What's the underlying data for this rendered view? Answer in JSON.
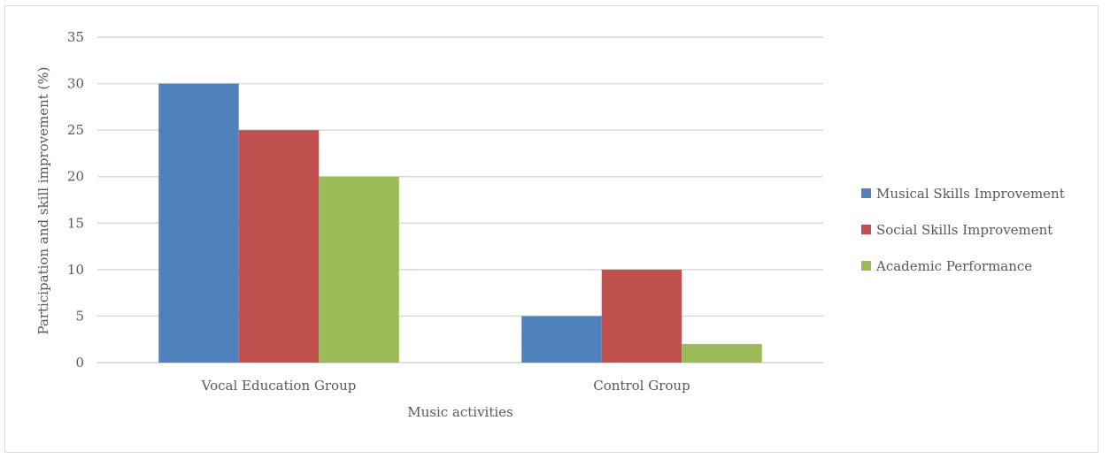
{
  "chart_data": {
    "type": "bar",
    "title": "",
    "xlabel": "Music activities",
    "ylabel": "Participation and skill improvement (%)",
    "ylim": [
      0,
      35
    ],
    "ytick_step": 5,
    "categories": [
      "Vocal Education Group",
      "Control Group"
    ],
    "series": [
      {
        "name": "Musical Skills Improvement",
        "color": "#4F81BD",
        "values": [
          30,
          5
        ]
      },
      {
        "name": "Social Skills Improvement",
        "color": "#C0504D",
        "values": [
          25,
          10
        ]
      },
      {
        "name": "Academic Performance",
        "color": "#9BBB59",
        "values": [
          20,
          2
        ]
      }
    ],
    "grid": true,
    "legend_position": "right"
  }
}
